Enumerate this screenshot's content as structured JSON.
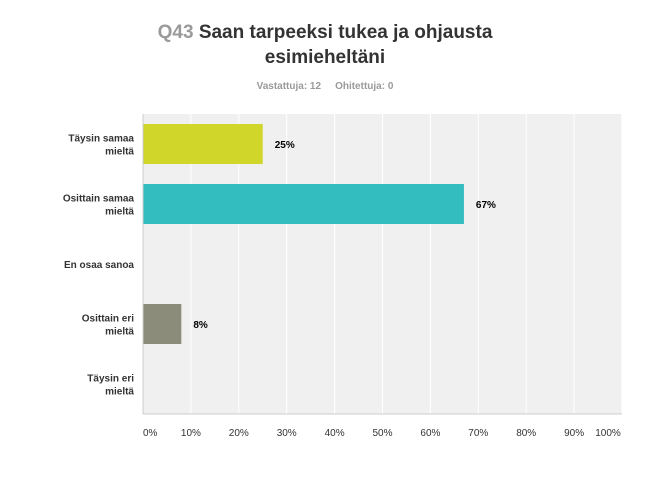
{
  "header": {
    "qnum": "Q43",
    "title": "Saan tarpeeksi tukea ja ohjausta esimieheltäni"
  },
  "stats": {
    "answered": "Vastattuja: 12",
    "skipped": "Ohitettuja: 0"
  },
  "chart_data": {
    "type": "bar",
    "orientation": "horizontal",
    "title": "Saan tarpeeksi tukea ja ohjausta esimieheltäni",
    "categories": [
      [
        "Täysin samaa",
        "mieltä"
      ],
      [
        "Osittain samaa",
        "mieltä"
      ],
      [
        "En osaa sanoa"
      ],
      [
        "Osittain eri",
        "mieltä"
      ],
      [
        "Täysin eri",
        "mieltä"
      ]
    ],
    "values": [
      25,
      67,
      0,
      8,
      0
    ],
    "data_labels": [
      "25%",
      "67%",
      "",
      "8%",
      ""
    ],
    "colors": [
      "#d1d62a",
      "#33bdbf",
      "#cccccc",
      "#8b8d7a",
      "#cccccc"
    ],
    "xlim": [
      0,
      100
    ],
    "xticks": [
      "0%",
      "10%",
      "20%",
      "30%",
      "40%",
      "50%",
      "60%",
      "70%",
      "80%",
      "90%",
      "100%"
    ],
    "grid": true,
    "plot_background": "#f0f0f0",
    "grid_color": "#ffffff"
  }
}
